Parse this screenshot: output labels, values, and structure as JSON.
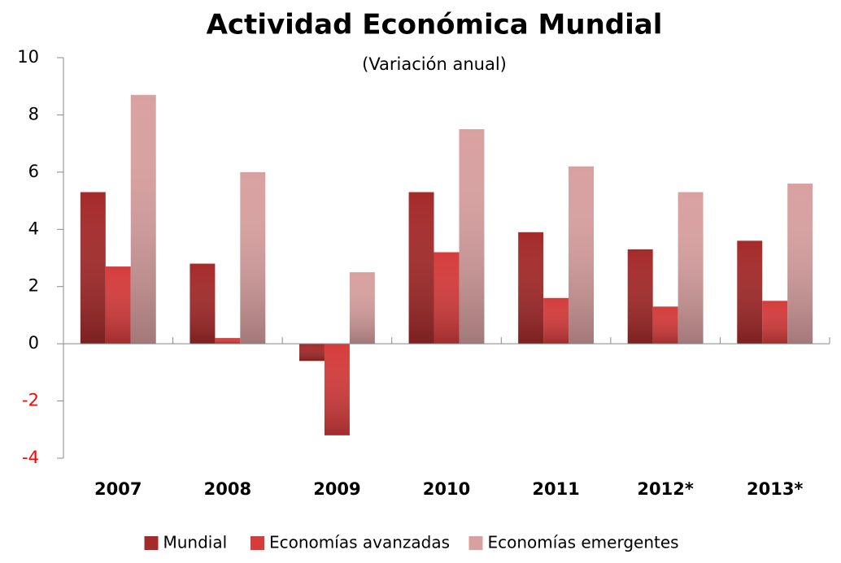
{
  "chart_data": {
    "type": "bar",
    "title": "Actividad Económica Mundial",
    "subtitle": "(Variación anual)",
    "categories": [
      "2007",
      "2008",
      "2009",
      "2010",
      "2011",
      "2012*",
      "2013*"
    ],
    "series": [
      {
        "name": "Mundial",
        "color": "#a52a2a",
        "values": [
          5.3,
          2.8,
          -0.6,
          5.3,
          3.9,
          3.3,
          3.6
        ]
      },
      {
        "name": "Economías avanzadas",
        "color": "#d63c3c",
        "values": [
          2.7,
          0.2,
          -3.2,
          3.2,
          1.6,
          1.3,
          1.5
        ]
      },
      {
        "name": "Economías emergentes",
        "color": "#d9a0a0",
        "values": [
          8.7,
          6.0,
          2.5,
          7.5,
          6.2,
          5.3,
          5.6
        ]
      }
    ],
    "ylim": [
      -4,
      10
    ],
    "yticks": [
      -4,
      -2,
      0,
      2,
      4,
      6,
      8,
      10
    ],
    "negative_tick_color": "#ff0000",
    "legend": "bottom"
  }
}
